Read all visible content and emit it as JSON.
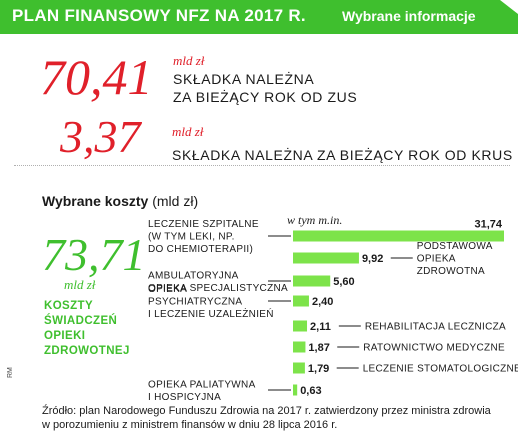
{
  "header": {
    "title": "PLAN FINANSOWY NFZ NA 2017 R.",
    "subtitle": "Wybrane informacje"
  },
  "contributions": [
    {
      "value": "70,41",
      "unit": "mld zł",
      "label_line1": "SKŁADKA NALEŻNA",
      "label_line2": "ZA BIEŻĄCY ROK OD ZUS"
    },
    {
      "value": "3,37",
      "unit": "mld zł",
      "label_line1": "SKŁADKA NALEŻNA ZA BIEŻĄCY ROK OD KRUS"
    }
  ],
  "costs": {
    "title": "Wybrane koszty",
    "unit": "(mld zł)",
    "total_value": "73,71",
    "total_unit": "mld zł",
    "total_label": [
      "KOSZTY",
      "ŚWIADCZEŃ",
      "OPIEKI",
      "ZDROWOTNEJ"
    ],
    "in_total_label": "w tym m.in."
  },
  "chart_data": {
    "type": "bar",
    "orientation": "horizontal",
    "categories": [
      "LECZENIE SZPITALNE (W TYM LEKI, NP. DO CHEMIOTERAPII)",
      "PODSTAWOWA OPIEKA ZDROWOTNA",
      "AMBULATORYJNA OPIEKA SPECJALISTYCZNA",
      "OPIEKA PSYCHIATRYCZNA I LECZENIE UZALEŻNIEŃ",
      "REHABILITACJA LECZNICZA",
      "RATOWNICTWO MEDYCZNE",
      "LECZENIE STOMATOLOGICZNE",
      "OPIEKA PALIATYWNA I HOSPICYJNA"
    ],
    "values": [
      31.74,
      9.92,
      5.6,
      2.4,
      2.11,
      1.87,
      1.79,
      0.63
    ],
    "value_labels": [
      "31,74",
      "9,92",
      "5,60",
      "2,40",
      "2,11",
      "1,87",
      "1,79",
      "0,63"
    ],
    "label_lines": [
      [
        "LECZENIE SZPITALNE",
        "(W TYM LEKI, NP.",
        "DO CHEMIOTERAPII)"
      ],
      [
        "PODSTAWOWA",
        "OPIEKA",
        "ZDROWOTNA"
      ],
      [
        "AMBULATORYJNA",
        "OPIEKA SPECJALISTYCZNA"
      ],
      [
        "OPIEKA",
        "PSYCHIATRYCZNA",
        "I LECZENIE UZALEŻNIEŃ"
      ],
      [
        "REHABILITACJA LECZNICZA"
      ],
      [
        "RATOWNICTWO MEDYCZNE"
      ],
      [
        "LECZENIE STOMATOLOGICZNE"
      ],
      [
        "OPIEKA PALIATYWNA",
        "I HOSPICYJNA"
      ]
    ],
    "label_side": [
      "left",
      "right",
      "left",
      "left",
      "right",
      "right",
      "right",
      "left"
    ],
    "bar_color": "#7de34a",
    "xlim": [
      0,
      31.74
    ]
  },
  "source": {
    "line1": "Źródło: plan Narodowego Funduszu Zdrowia na 2017 r. zatwierdzony przez ministra zdrowia",
    "line2": "w porozumieniu z ministrem finansów w dniu 28 lipca 2016 r."
  },
  "credit": "RM",
  "colors": {
    "accent_green": "#3fbf2e",
    "accent_red": "#e0202a"
  }
}
